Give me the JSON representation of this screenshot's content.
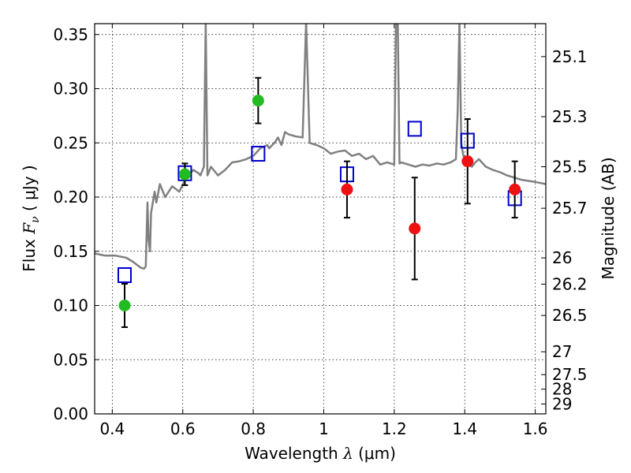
{
  "chart_data": {
    "type": "scatter",
    "title": "",
    "xlabel_text": "Wavelength  ",
    "xlabel_math": "λ",
    "xlabel_unit": " (μm)",
    "ylabel_text": "Flux  ",
    "ylabel_math": "F",
    "ylabel_sub": "ν",
    "ylabel_unit": "  ( μJy )",
    "y2label": "Magnitude (AB)",
    "xlim": [
      0.35,
      1.63
    ],
    "ylim": [
      0.0,
      0.36
    ],
    "xticks": [
      0.4,
      0.6,
      0.8,
      1.0,
      1.2,
      1.4,
      1.6
    ],
    "xtick_labels": [
      "0.4",
      "0.6",
      "0.8",
      "1",
      "1.2",
      "1.4",
      "1.6"
    ],
    "yticks": [
      0.0,
      0.05,
      0.1,
      0.15,
      0.2,
      0.25,
      0.3,
      0.35
    ],
    "ytick_labels": [
      "0.00",
      "0.05",
      "0.10",
      "0.15",
      "0.20",
      "0.25",
      "0.30",
      "0.35"
    ],
    "mag_ticks": [
      {
        "label": "25.1",
        "flux": 0.3296
      },
      {
        "label": "25.3",
        "flux": 0.2742
      },
      {
        "label": "25.5",
        "flux": 0.228
      },
      {
        "label": "25.7",
        "flux": 0.1897
      },
      {
        "label": "26",
        "flux": 0.1439
      },
      {
        "label": "26.2",
        "flux": 0.1197
      },
      {
        "label": "26.5",
        "flux": 0.0908
      },
      {
        "label": "27",
        "flux": 0.0573
      },
      {
        "label": "27.5",
        "flux": 0.0362
      },
      {
        "label": "28",
        "flux": 0.0228
      },
      {
        "label": "29",
        "flux": 0.0091
      }
    ],
    "grid": true,
    "colors": {
      "model": "#808080",
      "detection_green": "#22bb22",
      "detection_red": "#ee1111",
      "model_box": "#0000cc",
      "errorbar": "#000000"
    },
    "series": [
      {
        "marker": "circle-green",
        "points": [
          {
            "x": 0.435,
            "y": 0.1,
            "err": 0.02
          },
          {
            "x": 0.606,
            "y": 0.221,
            "err": 0.01
          },
          {
            "x": 0.814,
            "y": 0.289,
            "err": 0.021
          }
        ]
      },
      {
        "marker": "circle-red",
        "points": [
          {
            "x": 1.066,
            "y": 0.207,
            "err": 0.026
          },
          {
            "x": 1.258,
            "y": 0.171,
            "err": 0.047
          },
          {
            "x": 1.408,
            "y": 0.233,
            "err": 0.039
          },
          {
            "x": 1.542,
            "y": 0.207,
            "err": 0.026
          }
        ]
      },
      {
        "marker": "square-blue",
        "points": [
          {
            "x": 0.435,
            "y": 0.128
          },
          {
            "x": 0.606,
            "y": 0.222
          },
          {
            "x": 0.814,
            "y": 0.24
          },
          {
            "x": 1.066,
            "y": 0.221
          },
          {
            "x": 1.258,
            "y": 0.263
          },
          {
            "x": 1.408,
            "y": 0.252
          },
          {
            "x": 1.542,
            "y": 0.199
          }
        ]
      },
      {
        "marker": "line-gray",
        "x": [
          0.35,
          0.38,
          0.41,
          0.44,
          0.46,
          0.48,
          0.49,
          0.495,
          0.5,
          0.503,
          0.507,
          0.51,
          0.52,
          0.525,
          0.535,
          0.55,
          0.57,
          0.59,
          0.61,
          0.63,
          0.645,
          0.65,
          0.66,
          0.665,
          0.67,
          0.68,
          0.7,
          0.72,
          0.74,
          0.76,
          0.78,
          0.8,
          0.82,
          0.84,
          0.845,
          0.86,
          0.87,
          0.88,
          0.89,
          0.9,
          0.92,
          0.94,
          0.95,
          0.96,
          0.98,
          1.0,
          1.02,
          1.04,
          1.06,
          1.08,
          1.1,
          1.12,
          1.14,
          1.16,
          1.18,
          1.2,
          1.205,
          1.21,
          1.215,
          1.22,
          1.24,
          1.26,
          1.28,
          1.3,
          1.32,
          1.34,
          1.36,
          1.375,
          1.38,
          1.385,
          1.39,
          1.395,
          1.4,
          1.405,
          1.41,
          1.42,
          1.43,
          1.44,
          1.46,
          1.48,
          1.5,
          1.52,
          1.54,
          1.56,
          1.58,
          1.6,
          1.63
        ],
        "y": [
          0.148,
          0.146,
          0.146,
          0.144,
          0.14,
          0.135,
          0.134,
          0.136,
          0.195,
          0.16,
          0.15,
          0.185,
          0.205,
          0.195,
          0.212,
          0.2,
          0.21,
          0.205,
          0.218,
          0.225,
          0.222,
          0.22,
          0.228,
          0.362,
          0.22,
          0.228,
          0.22,
          0.225,
          0.232,
          0.233,
          0.235,
          0.238,
          0.245,
          0.248,
          0.245,
          0.25,
          0.255,
          0.248,
          0.26,
          0.258,
          0.256,
          0.255,
          0.362,
          0.25,
          0.248,
          0.245,
          0.24,
          0.242,
          0.243,
          0.238,
          0.24,
          0.235,
          0.238,
          0.23,
          0.232,
          0.23,
          0.362,
          0.362,
          0.231,
          0.232,
          0.23,
          0.228,
          0.23,
          0.229,
          0.231,
          0.23,
          0.232,
          0.235,
          0.28,
          0.362,
          0.25,
          0.24,
          0.233,
          0.232,
          0.23,
          0.228,
          0.232,
          0.235,
          0.228,
          0.225,
          0.223,
          0.22,
          0.218,
          0.216,
          0.215,
          0.214,
          0.212
        ]
      }
    ]
  }
}
